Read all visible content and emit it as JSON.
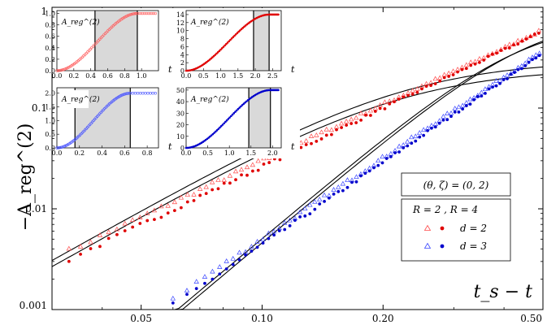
{
  "chart_data": {
    "type": "scatter",
    "scale": "log-log",
    "xlabel": "t_s − t",
    "ylabel": "−A_reg^(2)",
    "xlim": [
      0.03,
      0.5
    ],
    "ylim": [
      0.001,
      1
    ],
    "x_ticks": [
      0.05,
      0.1,
      0.2,
      0.5
    ],
    "x_tick_labels": [
      "0.05",
      "0.10",
      "0.20",
      "0.50"
    ],
    "y_ticks": [
      0.001,
      0.01,
      0.1,
      1
    ],
    "y_tick_labels": [
      "0.001",
      "0.01",
      "0.1",
      "1"
    ],
    "legend": {
      "title": "(θ, ζ) = (0, 2)",
      "header": "R = 2 , R = 4",
      "rows": [
        {
          "label": "d = 2",
          "open_color": "#ff4b4b",
          "filled_color": "#e00000"
        },
        {
          "label": "d = 3",
          "open_color": "#3a46ff",
          "filled_color": "#0000cc"
        }
      ]
    },
    "series": [
      {
        "name": "d=2, R=2 (open triangles)",
        "marker": "triangle",
        "color": "#ff4b4b",
        "x_range": [
          0.03,
          0.5
        ],
        "y_start": 0.0032,
        "y_end": 0.6
      },
      {
        "name": "d=2, R=4 (filled circles)",
        "marker": "circle",
        "color": "#e00000",
        "x_range": [
          0.03,
          0.5
        ],
        "y_start": 0.0026,
        "y_end": 0.58
      },
      {
        "name": "d=3, R=2 (open triangles)",
        "marker": "triangle",
        "color": "#3a46ff",
        "x_range": [
          0.06,
          0.5
        ],
        "y_start": 0.0013,
        "y_end": 0.37
      },
      {
        "name": "d=3, R=4 (filled circles)",
        "marker": "circle",
        "color": "#0000cc",
        "x_range": [
          0.06,
          0.5
        ],
        "y_start": 0.0011,
        "y_end": 0.35
      }
    ],
    "fit_lines": [
      {
        "name": "fit d=2 upper",
        "color": "#000000"
      },
      {
        "name": "fit d=2 lower",
        "color": "#000000"
      },
      {
        "name": "fit d=3 upper",
        "color": "#000000"
      },
      {
        "name": "fit d=3 lower",
        "color": "#000000"
      }
    ],
    "insets": [
      {
        "label": "A_reg^(2)",
        "color": "#ff5a5a",
        "x_ticks": [
          "0.0",
          "0.2",
          "0.4",
          "0.6",
          "0.8",
          "1.0"
        ],
        "y_ticks": [
          "0.0",
          "0.2",
          "0.4",
          "0.6",
          "0.8",
          "1.0"
        ],
        "xmax": 1.2,
        "ymax": 1.05,
        "shade": [
          0.45,
          0.95
        ],
        "xlabel": "t"
      },
      {
        "label": "A_reg^(2)",
        "color": "#e00000",
        "x_ticks": [
          "0.0",
          "0.5",
          "1.0",
          "1.5",
          "2.0",
          "2.5"
        ],
        "y_ticks": [
          "0",
          "2",
          "4",
          "6",
          "8",
          "10",
          "12",
          "14"
        ],
        "xmax": 2.75,
        "ymax": 15,
        "shade": [
          1.95,
          2.4
        ],
        "xlabel": "t"
      },
      {
        "label": "A_reg^(2)",
        "color": "#4a55ff",
        "x_ticks": [
          "0.0",
          "0.2",
          "0.4",
          "0.6",
          "0.8"
        ],
        "y_ticks": [
          "0.0",
          "0.5",
          "1.0",
          "1.5",
          "2.0"
        ],
        "xmax": 0.9,
        "ymax": 2.2,
        "shade": [
          0.16,
          0.65
        ],
        "xlabel": "t"
      },
      {
        "label": "A_reg^(2)",
        "color": "#0000cc",
        "x_ticks": [
          "0.0",
          "0.5",
          "1.0",
          "1.5",
          "2.0"
        ],
        "y_ticks": [
          "0",
          "10",
          "20",
          "30",
          "40",
          "50"
        ],
        "xmax": 2.2,
        "ymax": 52,
        "shade": [
          1.45,
          1.95
        ],
        "xlabel": "t"
      }
    ]
  }
}
